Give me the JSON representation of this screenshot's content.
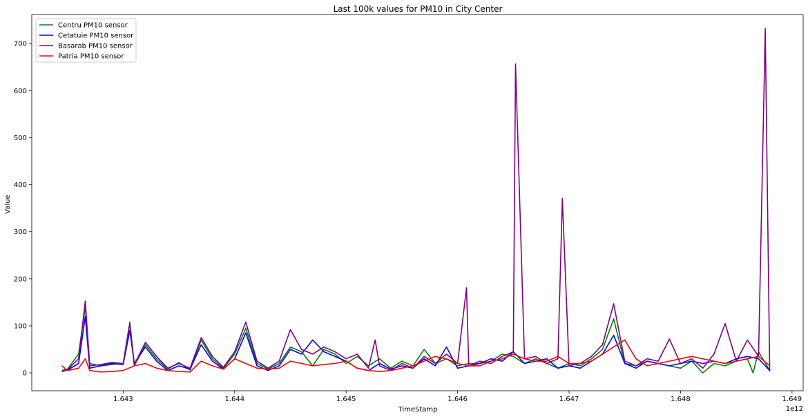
{
  "chart_data": {
    "type": "line",
    "title": "Last 100k values for PM10 in City Center",
    "xlabel": "TimeStamp",
    "ylabel": "Value",
    "x_offset_label": "1e12",
    "xlim": [
      1.64218,
      1.6491
    ],
    "ylim": [
      -38,
      762
    ],
    "xticks": [
      1.643,
      1.644,
      1.645,
      1.646,
      1.647,
      1.648,
      1.649
    ],
    "xtick_labels": [
      "1.643",
      "1.644",
      "1.645",
      "1.646",
      "1.647",
      "1.648",
      "1.649"
    ],
    "yticks": [
      0,
      100,
      200,
      300,
      400,
      500,
      600,
      700
    ],
    "ytick_labels": [
      "0",
      "100",
      "200",
      "300",
      "400",
      "500",
      "600",
      "700"
    ],
    "grid": false,
    "legend_position": "top-left",
    "series": [
      {
        "name": "Centru PM10 sensor",
        "color": "#008000",
        "x": [
          1.64245,
          1.6425,
          1.6426,
          1.64266,
          1.6427,
          1.6428,
          1.6429,
          1.643,
          1.64306,
          1.6431,
          1.6432,
          1.6433,
          1.6434,
          1.6435,
          1.6436,
          1.6437,
          1.6438,
          1.6439,
          1.644,
          1.6441,
          1.6442,
          1.6443,
          1.6444,
          1.6445,
          1.6446,
          1.6447,
          1.6448,
          1.6449,
          1.645,
          1.6451,
          1.6452,
          1.6453,
          1.6454,
          1.6455,
          1.6456,
          1.6457,
          1.6458,
          1.6459,
          1.646,
          1.6461,
          1.6462,
          1.6463,
          1.6464,
          1.6465,
          1.6466,
          1.6467,
          1.6468,
          1.6469,
          1.647,
          1.6471,
          1.6472,
          1.6473,
          1.6474,
          1.6475,
          1.6476,
          1.6477,
          1.6478,
          1.6479,
          1.648,
          1.6481,
          1.6482,
          1.6483,
          1.6484,
          1.6485,
          1.6486,
          1.64865,
          1.6487,
          1.6488
        ],
        "y": [
          5,
          8,
          40,
          140,
          20,
          15,
          18,
          20,
          108,
          15,
          60,
          30,
          8,
          22,
          6,
          70,
          30,
          10,
          40,
          95,
          20,
          8,
          20,
          55,
          45,
          15,
          50,
          40,
          20,
          35,
          15,
          30,
          10,
          25,
          15,
          50,
          20,
          30,
          15,
          20,
          20,
          25,
          40,
          35,
          20,
          30,
          20,
          10,
          20,
          15,
          30,
          50,
          115,
          20,
          15,
          25,
          20,
          15,
          10,
          25,
          0,
          20,
          15,
          25,
          30,
          0,
          45,
          5
        ]
      },
      {
        "name": "Cetatuie PM10 sensor",
        "color": "#0000ff",
        "x": [
          1.64245,
          1.6425,
          1.6426,
          1.64266,
          1.6427,
          1.6428,
          1.6429,
          1.643,
          1.64306,
          1.6431,
          1.6432,
          1.6433,
          1.6434,
          1.6435,
          1.6436,
          1.6437,
          1.6438,
          1.6439,
          1.644,
          1.6441,
          1.6442,
          1.6443,
          1.6444,
          1.6445,
          1.6446,
          1.6447,
          1.6448,
          1.6449,
          1.645,
          1.6451,
          1.6452,
          1.6453,
          1.6454,
          1.6455,
          1.6456,
          1.6457,
          1.6458,
          1.6459,
          1.646,
          1.6461,
          1.6462,
          1.6463,
          1.6464,
          1.6465,
          1.6466,
          1.6467,
          1.6468,
          1.6469,
          1.647,
          1.6471,
          1.6472,
          1.6473,
          1.6474,
          1.6475,
          1.6476,
          1.6477,
          1.6478,
          1.6479,
          1.648,
          1.6481,
          1.6482,
          1.6483,
          1.6484,
          1.6485,
          1.6486,
          1.6487,
          1.6488
        ],
        "y": [
          3,
          6,
          20,
          120,
          10,
          15,
          20,
          18,
          90,
          20,
          55,
          25,
          5,
          15,
          8,
          60,
          25,
          8,
          30,
          85,
          15,
          5,
          15,
          50,
          40,
          70,
          45,
          35,
          25,
          10,
          5,
          20,
          8,
          15,
          10,
          30,
          15,
          55,
          10,
          15,
          20,
          30,
          25,
          45,
          20,
          25,
          30,
          10,
          15,
          10,
          25,
          40,
          80,
          20,
          10,
          25,
          20,
          15,
          20,
          25,
          20,
          25,
          20,
          30,
          35,
          30,
          5
        ]
      },
      {
        "name": "Basarab PM10 sensor",
        "color": "#800080",
        "x": [
          1.64245,
          1.6425,
          1.6426,
          1.64266,
          1.6427,
          1.6428,
          1.6429,
          1.643,
          1.64306,
          1.6431,
          1.6432,
          1.6433,
          1.6434,
          1.6435,
          1.6436,
          1.6437,
          1.6438,
          1.6439,
          1.644,
          1.6441,
          1.6442,
          1.6443,
          1.6444,
          1.6445,
          1.6446,
          1.6447,
          1.6448,
          1.6449,
          1.645,
          1.6451,
          1.6452,
          1.64526,
          1.6453,
          1.6454,
          1.6455,
          1.6456,
          1.6457,
          1.6458,
          1.6459,
          1.646,
          1.64608,
          1.6461,
          1.6462,
          1.6463,
          1.6464,
          1.6465,
          1.64652,
          1.6466,
          1.6467,
          1.6468,
          1.6469,
          1.64694,
          1.647,
          1.6471,
          1.6472,
          1.6473,
          1.6474,
          1.6475,
          1.6476,
          1.6477,
          1.6478,
          1.6479,
          1.648,
          1.6481,
          1.6482,
          1.6483,
          1.6484,
          1.6485,
          1.6486,
          1.6487,
          1.64876,
          1.6488
        ],
        "y": [
          4,
          7,
          30,
          153,
          15,
          18,
          22,
          20,
          105,
          18,
          65,
          35,
          10,
          20,
          10,
          75,
          35,
          12,
          45,
          108,
          25,
          10,
          25,
          92,
          50,
          40,
          55,
          45,
          30,
          40,
          10,
          70,
          15,
          5,
          20,
          10,
          35,
          20,
          40,
          20,
          181,
          15,
          25,
          20,
          35,
          45,
          657,
          30,
          35,
          20,
          30,
          371,
          15,
          20,
          35,
          60,
          147,
          25,
          15,
          30,
          25,
          72,
          20,
          30,
          10,
          40,
          105,
          25,
          70,
          35,
          732,
          3
        ]
      },
      {
        "name": "Patria PM10 sensor",
        "color": "#ff0000",
        "x": [
          1.64245,
          1.6425,
          1.6426,
          1.64266,
          1.6427,
          1.6428,
          1.6429,
          1.643,
          1.6431,
          1.6432,
          1.6433,
          1.6434,
          1.6435,
          1.6436,
          1.6437,
          1.6438,
          1.6439,
          1.644,
          1.6441,
          1.6442,
          1.6443,
          1.6444,
          1.6445,
          1.6446,
          1.6447,
          1.6448,
          1.6449,
          1.645,
          1.6451,
          1.6452,
          1.6453,
          1.6454,
          1.6455,
          1.6456,
          1.6457,
          1.6458,
          1.6459,
          1.646,
          1.6461,
          1.6462,
          1.6463,
          1.6464,
          1.6465,
          1.6466,
          1.6467,
          1.6468,
          1.6469,
          1.647,
          1.6471,
          1.6472,
          1.6473,
          1.6474,
          1.6475,
          1.6476,
          1.6477,
          1.6478,
          1.6479,
          1.648,
          1.6481,
          1.6482,
          1.6483,
          1.6484,
          1.6485,
          1.6486,
          1.6487,
          1.6488
        ],
        "y": [
          15,
          5,
          10,
          30,
          5,
          2,
          3,
          5,
          15,
          20,
          10,
          5,
          3,
          2,
          25,
          15,
          8,
          30,
          20,
          10,
          8,
          10,
          25,
          20,
          15,
          18,
          20,
          25,
          10,
          5,
          3,
          5,
          10,
          15,
          25,
          35,
          30,
          20,
          15,
          15,
          25,
          30,
          40,
          30,
          25,
          25,
          35,
          20,
          20,
          25,
          40,
          55,
          70,
          30,
          15,
          20,
          25,
          30,
          35,
          30,
          25,
          20,
          25,
          30,
          35,
          15
        ]
      }
    ]
  }
}
